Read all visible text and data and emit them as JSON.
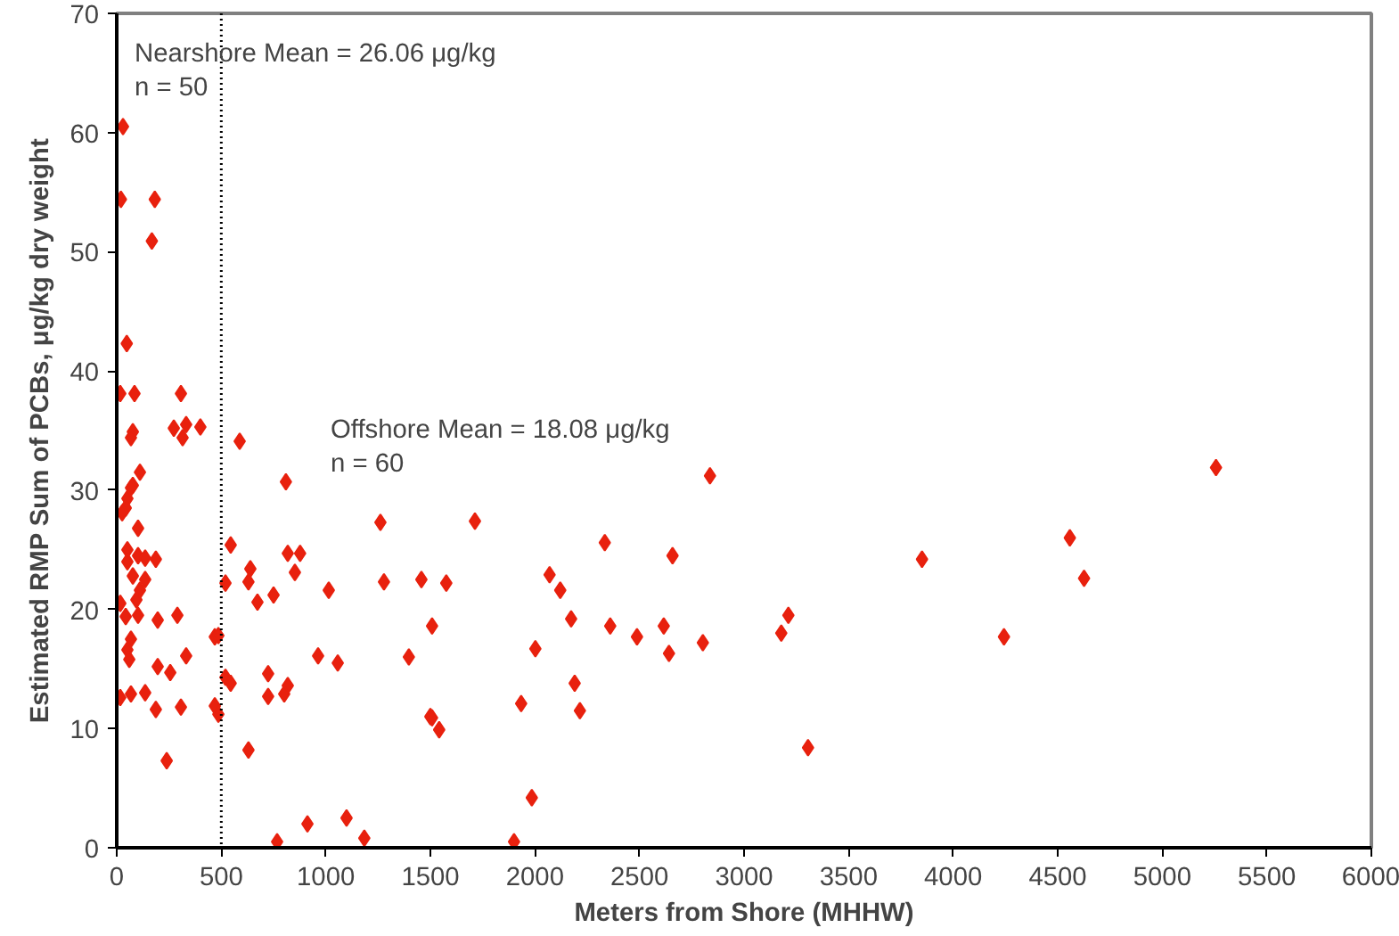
{
  "chart_data": {
    "type": "scatter",
    "xlabel": "Meters from Shore (MHHW)",
    "ylabel": "Estimated RMP Sum of PCBs, μg/kg dry weight",
    "xlim": [
      0,
      6000
    ],
    "ylim": [
      0,
      70
    ],
    "xticks": [
      0,
      500,
      1000,
      1500,
      2000,
      2500,
      3000,
      3500,
      4000,
      4500,
      5000,
      5500,
      6000
    ],
    "yticks": [
      0,
      10,
      20,
      30,
      40,
      50,
      60,
      70
    ],
    "grid": false,
    "marker": "diamond",
    "annotations": [
      "Nearshore Mean = 26.06 μg/kg\nn = 50",
      "Offshore Mean = 18.08 μg/kg\nn = 60"
    ],
    "ref_lines": [
      {
        "axis": "x",
        "value": 500,
        "label": null,
        "color": "#000000",
        "line_style": "dotted"
      }
    ],
    "series": [
      {
        "color": "#e8210e",
        "x": [
          30,
          20,
          182,
          168,
          48,
          17,
          85,
          307,
          273,
          332,
          315,
          400,
          77,
          68,
          588,
          111,
          77,
          51,
          809,
          68,
          43,
          26,
          102,
          51,
          51,
          102,
          136,
          187,
          545,
          77,
          136,
          111,
          94,
          17,
          43,
          102,
          196,
          290,
          520,
          639,
          630,
          673,
          750,
          818,
          877,
          852,
          1014,
          68,
          51,
          60,
          196,
          256,
          332,
          469,
          486,
          520,
          545,
          724,
          818,
          724,
          801,
          963,
          1057,
          17,
          68,
          136,
          187,
          307,
          469,
          486,
          239,
          630,
          767,
          912,
          1099,
          1184,
          2837,
          1261,
          1713,
          1278,
          1457,
          1576,
          2334,
          2658,
          2070,
          2121,
          2173,
          2360,
          2488,
          2616,
          2641,
          2803,
          3178,
          3212,
          3306,
          1508,
          1397,
          2002,
          2190,
          2215,
          1934,
          1500,
          1508,
          1542,
          1985,
          1900,
          3851,
          4243,
          4558,
          4626,
          5257
        ],
        "values": [
          60.5,
          54.4,
          54.4,
          50.9,
          42.3,
          38.1,
          38.1,
          38.1,
          35.2,
          35.5,
          34.4,
          35.3,
          34.9,
          34.4,
          34.1,
          31.5,
          30.4,
          29.3,
          30.7,
          30.2,
          28.5,
          28.1,
          26.8,
          25.0,
          24.0,
          24.5,
          24.3,
          24.2,
          25.4,
          22.8,
          22.5,
          21.6,
          20.8,
          20.5,
          19.4,
          19.5,
          19.1,
          19.5,
          22.2,
          23.4,
          22.3,
          20.6,
          21.2,
          24.7,
          24.7,
          23.1,
          21.6,
          17.5,
          16.6,
          15.8,
          15.2,
          14.7,
          16.1,
          17.7,
          17.8,
          14.3,
          13.8,
          14.6,
          13.6,
          12.7,
          12.9,
          16.1,
          15.5,
          12.6,
          12.9,
          13.0,
          11.6,
          11.8,
          11.9,
          11.2,
          7.3,
          8.2,
          0.5,
          2.0,
          2.5,
          0.8,
          31.2,
          27.3,
          27.4,
          22.3,
          22.5,
          22.2,
          25.6,
          24.5,
          22.9,
          21.6,
          19.2,
          18.6,
          17.7,
          18.6,
          16.3,
          17.2,
          18.0,
          19.5,
          8.4,
          18.6,
          16.0,
          16.7,
          13.8,
          11.5,
          12.1,
          11.0,
          10.9,
          9.9,
          4.2,
          0.5,
          24.2,
          17.7,
          26.0,
          22.6,
          31.9
        ]
      }
    ]
  }
}
